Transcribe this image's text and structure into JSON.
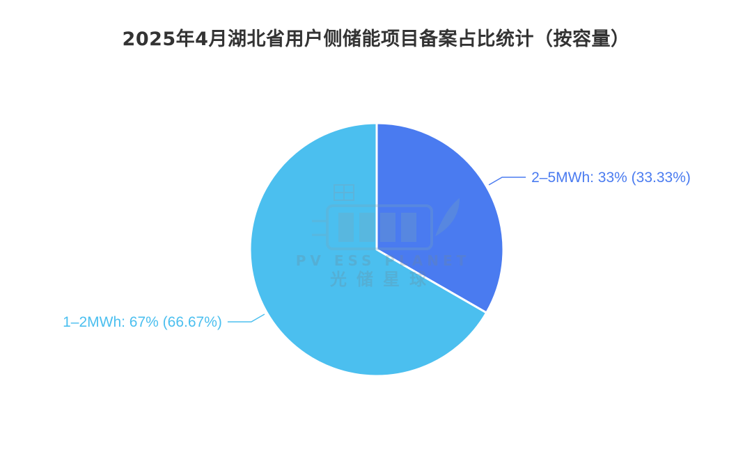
{
  "chart_data": {
    "type": "pie",
    "title": "2025年4月湖北省用户侧储能项目备案占比统计（按容量）",
    "slices": [
      {
        "name": "2-5MWh",
        "value": 33.33,
        "label": "2–5MWh: 33% (33.33%)",
        "color": "#4a7bf0"
      },
      {
        "name": "1-2MWh",
        "value": 66.67,
        "label": "1–2MWh: 67% (66.67%)",
        "color": "#4bbfef"
      }
    ],
    "legend": "none"
  },
  "watermark": {
    "text_en": "PV ESS PLANET",
    "text_cn": "光储星球"
  }
}
